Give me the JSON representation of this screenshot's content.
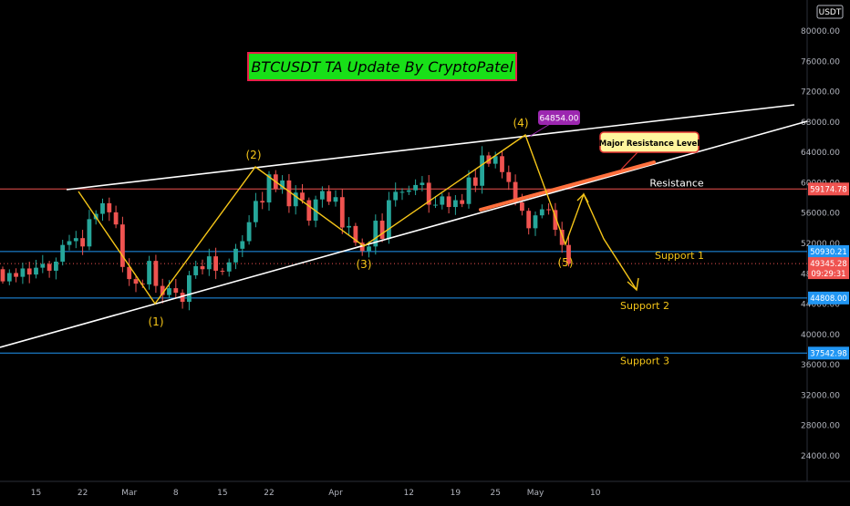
{
  "chart_data": {
    "type": "candlestick",
    "title": "BTCUSDT TA Update By CryptoPatel",
    "currency": "USDT",
    "ylim": [
      20000,
      84000
    ],
    "y_ticks": [
      24000,
      28000,
      32000,
      36000,
      40000,
      44000,
      48000,
      52000,
      56000,
      60000,
      64000,
      68000,
      72000,
      76000,
      80000
    ],
    "x_ticks": [
      {
        "label": "15",
        "day": 15
      },
      {
        "label": "22",
        "day": 22
      },
      {
        "label": "Mar",
        "day": 29
      },
      {
        "label": "8",
        "day": 36
      },
      {
        "label": "15",
        "day": 43
      },
      {
        "label": "22",
        "day": 50
      },
      {
        "label": "Apr",
        "day": 60
      },
      {
        "label": "12",
        "day": 71
      },
      {
        "label": "19",
        "day": 78
      },
      {
        "label": "25",
        "day": 84
      },
      {
        "label": "May",
        "day": 90
      },
      {
        "label": "10",
        "day": 99
      }
    ],
    "close_prices": [
      47000,
      48100,
      47600,
      48700,
      47900,
      48800,
      49300,
      48400,
      49600,
      51800,
      52300,
      52700,
      51600,
      55200,
      55900,
      57300,
      56100,
      54500,
      48900,
      47300,
      46700,
      46600,
      49700,
      46400,
      45200,
      46100,
      45500,
      44300,
      47800,
      49000,
      48600,
      50300,
      48400,
      48300,
      49500,
      51300,
      52300,
      54800,
      57600,
      57400,
      61100,
      59200,
      60300,
      56900,
      58700,
      57700,
      55000,
      57800,
      58900,
      57500,
      58100,
      54100,
      54300,
      52100,
      51000,
      51600,
      55000,
      52600,
      57700,
      58800,
      58800,
      59000,
      59700,
      60000,
      57100,
      57100,
      58200,
      56800,
      57700,
      57200,
      60700,
      59600,
      63600,
      62500,
      63500,
      61400,
      60100,
      57400,
      56300,
      54000,
      55700,
      56500,
      56400,
      53800,
      51800,
      49350
    ],
    "resistance": {
      "label": "Resistance",
      "price": 59174.78
    },
    "supports": [
      {
        "label": "Support 1",
        "price": 50930.21
      },
      {
        "label": "Support 2",
        "price": 44808.0
      },
      {
        "label": "Support 3",
        "price": 37542.98
      }
    ],
    "current_price": 49345.28,
    "countdown": "09:29:31",
    "peak_label": "64854.00",
    "major_resistance_label": "Major Resistance Level",
    "wave_labels": [
      "(1)",
      "(2)",
      "(3)",
      "(4)",
      "(5)"
    ],
    "colors": {
      "up": "#26a69a",
      "down": "#ef5350",
      "resistance": "#ef5350",
      "support": "#2196f3",
      "wave": "#f5c518",
      "trendline": "#ffffff",
      "title_bg": "#18e018",
      "title_border": "#e8204a",
      "peak_bg": "#9c27b0",
      "callout_bg": "#fff59d",
      "callout_border": "#e53935",
      "orange_line": "#ff6f3c"
    }
  }
}
